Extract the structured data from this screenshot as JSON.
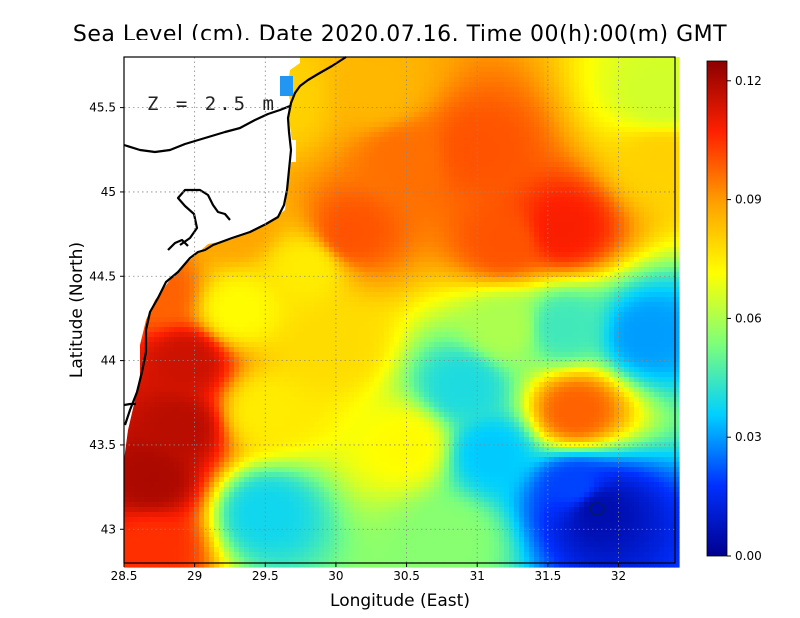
{
  "title": "Sea Level (cm). Date 2020.07.16. Time 00(h):00(m) GMT",
  "annotation": "Z = 2.5 m",
  "chart_data": {
    "type": "heatmap",
    "title": "Sea Level (cm). Date 2020.07.16. Time 00(h):00(m) GMT",
    "xlabel": "Longitude (East)",
    "ylabel": "Latitude (North)",
    "xlim": [
      28.5,
      32.4
    ],
    "ylim": [
      42.8,
      45.8
    ],
    "xticks": [
      28.5,
      29,
      29.5,
      30,
      30.5,
      31,
      31.5,
      32
    ],
    "xtick_labels": [
      "28.5",
      "29",
      "29.5",
      "30",
      "30.5",
      "31",
      "31.5",
      "32"
    ],
    "yticks": [
      43,
      43.5,
      44,
      44.5,
      45,
      45.5
    ],
    "ytick_labels": [
      "43",
      "43.5",
      "44",
      "44.5",
      "45",
      "45.5"
    ],
    "grid": true,
    "colorbar": {
      "min": 0.0,
      "max": 0.125,
      "ticks": [
        0.0,
        0.03,
        0.06,
        0.09,
        0.12
      ],
      "tick_labels": [
        "0.00",
        "0.03",
        "0.06",
        "0.09",
        "0.12"
      ],
      "colors": [
        "#00008f",
        "#0030ff",
        "#00d0ff",
        "#7dff7a",
        "#ffff00",
        "#ffa000",
        "#ff2000",
        "#8b0000"
      ]
    },
    "field_features": [
      {
        "lon": 31.6,
        "lat": 44.78,
        "value": 0.108
      },
      {
        "lon": 31.2,
        "lat": 44.7,
        "value": 0.1
      },
      {
        "lon": 31.0,
        "lat": 45.25,
        "value": 0.1
      },
      {
        "lon": 30.5,
        "lat": 45.2,
        "value": 0.096
      },
      {
        "lon": 30.1,
        "lat": 44.75,
        "value": 0.1
      },
      {
        "lon": 29.6,
        "lat": 45.55,
        "value": 0.08
      },
      {
        "lon": 31.7,
        "lat": 43.7,
        "value": 0.098
      },
      {
        "lon": 31.85,
        "lat": 43.12,
        "value": 0.005
      },
      {
        "lon": 31.7,
        "lat": 43.25,
        "value": 0.02
      },
      {
        "lon": 31.1,
        "lat": 43.45,
        "value": 0.035
      },
      {
        "lon": 32.2,
        "lat": 44.15,
        "value": 0.03
      },
      {
        "lon": 31.6,
        "lat": 44.2,
        "value": 0.045
      },
      {
        "lon": 30.9,
        "lat": 43.85,
        "value": 0.04
      },
      {
        "lon": 29.5,
        "lat": 43.1,
        "value": 0.038
      },
      {
        "lon": 30.8,
        "lat": 42.95,
        "value": 0.055
      },
      {
        "lon": 28.7,
        "lat": 43.3,
        "value": 0.12
      },
      {
        "lon": 28.9,
        "lat": 43.6,
        "value": 0.118
      },
      {
        "lon": 28.95,
        "lat": 44.0,
        "value": 0.115
      },
      {
        "lon": 28.75,
        "lat": 44.4,
        "value": 0.098
      },
      {
        "lon": 29.3,
        "lat": 44.8,
        "value": 0.088
      },
      {
        "lon": 29.3,
        "lat": 44.3,
        "value": 0.072
      },
      {
        "lon": 29.5,
        "lat": 43.7,
        "value": 0.075
      },
      {
        "lon": 30.0,
        "lat": 44.1,
        "value": 0.078
      },
      {
        "lon": 30.5,
        "lat": 43.5,
        "value": 0.072
      },
      {
        "lon": 32.3,
        "lat": 45.2,
        "value": 0.08
      },
      {
        "lon": 29.8,
        "lat": 44.55,
        "value": 0.075
      },
      {
        "lon": 30.3,
        "lat": 45.6,
        "value": 0.085
      },
      {
        "lon": 32.3,
        "lat": 45.55,
        "value": 0.065
      },
      {
        "lon": 31.2,
        "lat": 44.2,
        "value": 0.06
      },
      {
        "lon": 28.7,
        "lat": 42.9,
        "value": 0.105
      }
    ],
    "contour_mark": {
      "lon": 31.85,
      "lat": 43.12
    }
  }
}
